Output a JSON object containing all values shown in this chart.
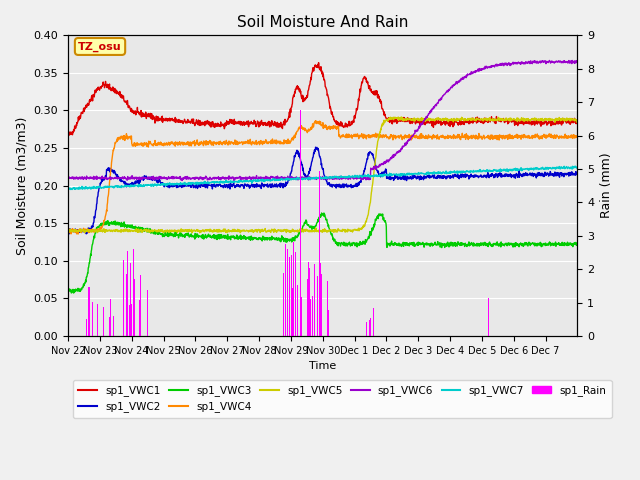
{
  "title": "Soil Moisture And Rain",
  "xlabel": "Time",
  "ylabel_left": "Soil Moisture (m3/m3)",
  "ylabel_right": "Rain (mm)",
  "ylim_left": [
    0.0,
    0.4
  ],
  "ylim_right": [
    0.0,
    9.0
  ],
  "annotation_text": "TZ_osu",
  "annotation_color": "#cc0000",
  "annotation_bg": "#ffffaa",
  "annotation_border": "#cc8800",
  "bg_color": "#e8e8e8",
  "fig_bg": "#f0f0f0",
  "legend": [
    {
      "label": "sp1_VWC1",
      "color": "#dd0000"
    },
    {
      "label": "sp1_VWC2",
      "color": "#0000cc"
    },
    {
      "label": "sp1_VWC3",
      "color": "#00cc00"
    },
    {
      "label": "sp1_VWC4",
      "color": "#ff8800"
    },
    {
      "label": "sp1_VWC5",
      "color": "#cccc00"
    },
    {
      "label": "sp1_VWC6",
      "color": "#9900cc"
    },
    {
      "label": "sp1_VWC7",
      "color": "#00cccc"
    },
    {
      "label": "sp1_Rain",
      "color": "#ff00ff"
    }
  ],
  "xtick_labels": [
    "Nov 22",
    "Nov 23",
    "Nov 24",
    "Nov 25",
    "Nov 26",
    "Nov 27",
    "Nov 28",
    "Nov 29",
    "Nov 30",
    "Dec 1",
    "Dec 2",
    "Dec 3",
    "Dec 4",
    "Dec 5",
    "Dec 6",
    "Dec 7"
  ],
  "figsize": [
    6.4,
    4.8
  ],
  "dpi": 100
}
